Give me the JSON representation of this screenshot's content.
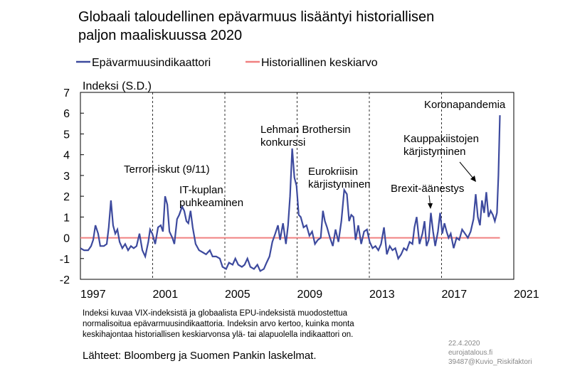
{
  "chart_data": {
    "type": "line",
    "title": [
      "Globaali taloudellinen epävarmuus lisääntyi historiallisen",
      "paljon maaliskuussa 2020"
    ],
    "y_label": "Indeksi (S.D.)",
    "x": [
      1997.0,
      1997.2,
      1997.43,
      1997.59,
      1997.71,
      1997.83,
      1997.98,
      1998.1,
      1998.3,
      1998.46,
      1998.57,
      1998.69,
      1998.81,
      1998.93,
      1999.05,
      1999.17,
      1999.32,
      1999.48,
      1999.64,
      1999.8,
      1999.95,
      2000.11,
      2000.27,
      2000.43,
      2000.59,
      2000.76,
      2000.86,
      2000.98,
      2001.14,
      2001.3,
      2001.45,
      2001.57,
      2001.69,
      2001.81,
      2001.93,
      2002.09,
      2002.2,
      2002.35,
      2002.47,
      2002.63,
      2002.75,
      2002.87,
      2002.98,
      2003.1,
      2003.22,
      2003.38,
      2003.57,
      2003.77,
      2003.96,
      2004.17,
      2004.32,
      2004.52,
      2004.72,
      2004.87,
      2005.07,
      2005.23,
      2005.43,
      2005.58,
      2005.74,
      2005.94,
      2006.09,
      2006.25,
      2006.41,
      2006.61,
      2006.8,
      2006.96,
      2007.16,
      2007.31,
      2007.47,
      2007.63,
      2007.79,
      2007.94,
      2008.06,
      2008.22,
      2008.38,
      2008.5,
      2008.61,
      2008.73,
      2008.85,
      2008.97,
      2009.09,
      2009.2,
      2009.36,
      2009.52,
      2009.68,
      2009.83,
      2009.99,
      2010.15,
      2010.31,
      2010.43,
      2010.54,
      2010.66,
      2010.82,
      2010.98,
      2011.13,
      2011.29,
      2011.45,
      2011.61,
      2011.76,
      2011.88,
      2012.0,
      2012.12,
      2012.24,
      2012.39,
      2012.55,
      2012.71,
      2012.87,
      2013.02,
      2013.18,
      2013.34,
      2013.5,
      2013.65,
      2013.81,
      2013.97,
      2014.13,
      2014.28,
      2014.44,
      2014.6,
      2014.76,
      2014.91,
      2015.07,
      2015.23,
      2015.39,
      2015.5,
      2015.62,
      2015.78,
      2015.94,
      2016.06,
      2016.17,
      2016.29,
      2016.41,
      2016.53,
      2016.65,
      2016.8,
      2016.92,
      2017.04,
      2017.16,
      2017.28,
      2017.39,
      2017.51,
      2017.67,
      2017.83,
      2017.98,
      2018.14,
      2018.3,
      2018.46,
      2018.61,
      2018.77,
      2018.89,
      2019.01,
      2019.13,
      2019.24,
      2019.36,
      2019.48,
      2019.6,
      2019.72,
      2019.84,
      2019.95,
      2020.07,
      2020.15,
      2020.23
    ],
    "series": [
      {
        "name": "Epävarmuusindikaattori",
        "color": "#3d4a9e",
        "values": [
          -0.5,
          -0.6,
          -0.6,
          -0.4,
          -0.1,
          0.6,
          0.2,
          -0.4,
          -0.4,
          -0.3,
          0.5,
          1.8,
          0.6,
          0.2,
          0.4,
          -0.2,
          -0.5,
          -0.3,
          -0.6,
          -0.4,
          -0.5,
          -0.4,
          0.2,
          -0.6,
          -0.9,
          -0.2,
          0.4,
          0.2,
          -0.3,
          0.5,
          0.6,
          0.3,
          2.0,
          1.6,
          0.3,
          0.0,
          -0.3,
          0.9,
          1.1,
          1.5,
          1.3,
          0.8,
          0.7,
          1.3,
          0.5,
          -0.3,
          -0.6,
          -0.7,
          -0.8,
          -0.6,
          -0.9,
          -0.9,
          -1.0,
          -1.4,
          -1.5,
          -1.2,
          -1.3,
          -1.0,
          -1.3,
          -1.4,
          -1.3,
          -1.0,
          -1.4,
          -1.5,
          -1.3,
          -1.6,
          -1.5,
          -1.2,
          -0.9,
          -0.2,
          0.2,
          0.6,
          -0.1,
          0.7,
          -0.3,
          0.6,
          2.0,
          4.3,
          2.9,
          2.5,
          1.1,
          1.0,
          0.5,
          0.6,
          0.1,
          0.3,
          -0.3,
          -0.1,
          0.0,
          1.3,
          0.8,
          0.5,
          0.0,
          -0.4,
          0.4,
          -0.2,
          0.8,
          2.3,
          2.1,
          0.8,
          1.1,
          1.0,
          -0.1,
          0.6,
          -0.3,
          0.3,
          0.4,
          -0.2,
          -0.5,
          -0.4,
          -0.6,
          -0.3,
          0.5,
          -0.8,
          -0.4,
          -0.6,
          -0.5,
          -1.0,
          -0.8,
          -0.5,
          -0.6,
          -0.2,
          -0.3,
          0.5,
          1.0,
          -0.3,
          0.2,
          0.8,
          -0.4,
          -0.1,
          1.2,
          0.3,
          -0.4,
          0.3,
          1.2,
          0.2,
          0.7,
          0.3,
          0.0,
          0.2,
          -0.5,
          0.0,
          -0.1,
          0.4,
          0.2,
          0.0,
          0.3,
          0.9,
          2.1,
          1.0,
          0.6,
          1.8,
          1.2,
          2.2,
          1.0,
          1.3,
          1.1,
          0.8,
          1.2,
          3.0,
          5.9
        ]
      },
      {
        "name": "Historiallinen keskiarvo",
        "color": "#f08080",
        "x": [
          1997.0,
          2020.23
        ],
        "values": [
          0,
          0
        ]
      }
    ],
    "xlim": [
      1997,
      2021
    ],
    "xticks": [
      1997,
      2001,
      2005,
      2009,
      2013,
      2017,
      2021
    ],
    "ylim": [
      -2,
      7
    ],
    "yticks": [
      -2,
      -1,
      0,
      1,
      2,
      3,
      4,
      5,
      6,
      7
    ],
    "grid": "x",
    "annotations": [
      [
        "Terrori-iskut (9/11)"
      ],
      [
        "IT-kuplan",
        "puhkeaminen"
      ],
      [
        "Lehman Brothersin",
        "konkurssi"
      ],
      [
        "Eurokriisin",
        "kärjistyminen"
      ],
      [
        "Brexit-äänestys"
      ],
      [
        "Kauppakiistojen",
        "kärjistyminen"
      ],
      [
        "Koronapandemia"
      ]
    ],
    "footnote": [
      "Indeksi kuvaa VIX-indeksistä ja globaalista EPU-indeksistä muodostettua",
      "normalisoitua epävarmuusindikaattoria. Indeksin arvo kertoo, kuinka monta",
      "keskihajontaa historiallisen keskiarvonsa ylä- tai alapuolella indikaattori on."
    ],
    "source": "Lähteet: Bloomberg ja Suomen Pankin laskelmat.",
    "credits": [
      "22.4.2020",
      "eurojatalous.fi",
      "39487@Kuvio_Riskifaktori"
    ]
  }
}
